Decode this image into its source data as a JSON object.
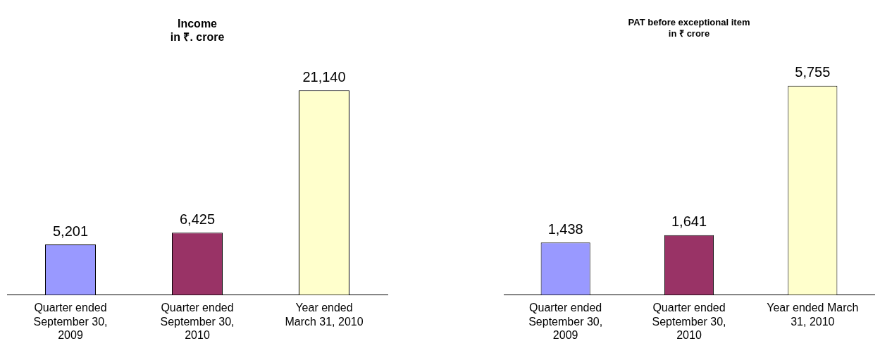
{
  "chart_data": [
    {
      "type": "bar",
      "title": "Income\nin ₹. crore",
      "categories": [
        "Quarter ended September 30, 2009",
        "Quarter ended September 30, 2010",
        "Year ended March 31, 2010"
      ],
      "values": [
        5201,
        6425,
        21140
      ],
      "value_labels": [
        "5,201",
        "6,425",
        "21,140"
      ],
      "colors": [
        "#9999ff",
        "#993366",
        "#ffffcc"
      ],
      "grid": false,
      "legend": false,
      "tick_labels": "x"
    },
    {
      "type": "bar",
      "title": "PAT before exceptional item\nin ₹ crore",
      "categories": [
        "Quarter ended September 30, 2009",
        "Quarter ended September 30, 2010",
        "Year ended March 31, 2010"
      ],
      "values": [
        1438,
        1641,
        5755
      ],
      "value_labels": [
        "1,438",
        "1,641",
        "5,755"
      ],
      "colors": [
        "#9999ff",
        "#993366",
        "#ffffcc"
      ],
      "grid": false,
      "legend": false,
      "tick_labels": "x"
    }
  ]
}
